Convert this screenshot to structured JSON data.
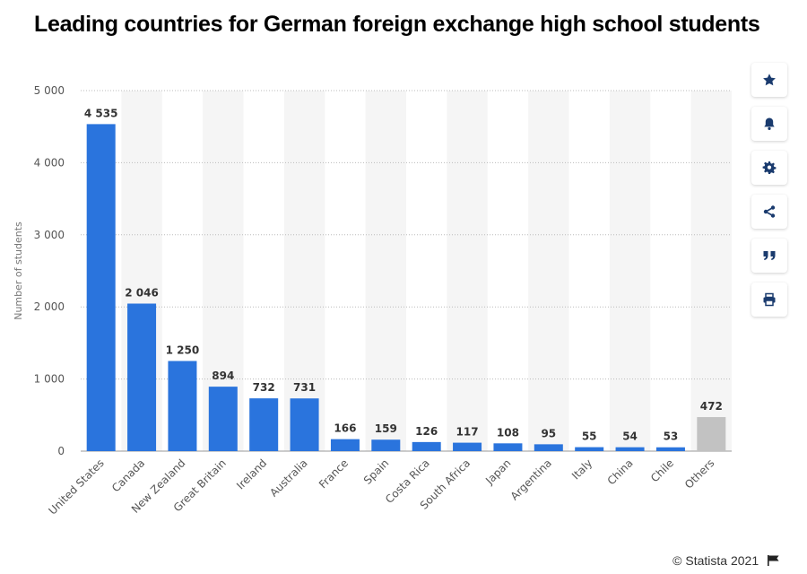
{
  "title": "Leading countries for German foreign exchange high school students",
  "credit": "© Statista 2021",
  "toolbar": {
    "buttons": [
      {
        "name": "favorite-button",
        "icon": "star-icon"
      },
      {
        "name": "notification-button",
        "icon": "bell-icon"
      },
      {
        "name": "settings-button",
        "icon": "gear-icon"
      },
      {
        "name": "share-button",
        "icon": "share-icon"
      },
      {
        "name": "cite-button",
        "icon": "quote-icon"
      },
      {
        "name": "print-button",
        "icon": "printer-icon"
      }
    ]
  },
  "colors": {
    "bar": "#2a74dd",
    "bar_other": "#c2c2c2",
    "band": "#f5f5f5",
    "grid": "#bbbbbb"
  },
  "chart_data": {
    "type": "bar",
    "title": "Leading countries for German foreign exchange high school students",
    "xlabel": "",
    "ylabel": "Number of students",
    "ylim": [
      0,
      5000
    ],
    "yticks": [
      0,
      1000,
      2000,
      3000,
      4000,
      5000
    ],
    "ytick_labels": [
      "0",
      "1 000",
      "2 000",
      "3 000",
      "4 000",
      "5 000"
    ],
    "grid": true,
    "categories": [
      "United States",
      "Canada",
      "New Zealand",
      "Great Britain",
      "Ireland",
      "Australia",
      "France",
      "Spain",
      "Costa Rica",
      "South Africa",
      "Japan",
      "Argentina",
      "Italy",
      "China",
      "Chile",
      "Others"
    ],
    "values": [
      4535,
      2046,
      1250,
      894,
      732,
      731,
      166,
      159,
      126,
      117,
      108,
      95,
      55,
      54,
      53,
      472
    ],
    "value_labels": [
      "4 535",
      "2 046",
      "1 250",
      "894",
      "732",
      "731",
      "166",
      "159",
      "126",
      "117",
      "108",
      "95",
      "55",
      "54",
      "53",
      "472"
    ]
  }
}
